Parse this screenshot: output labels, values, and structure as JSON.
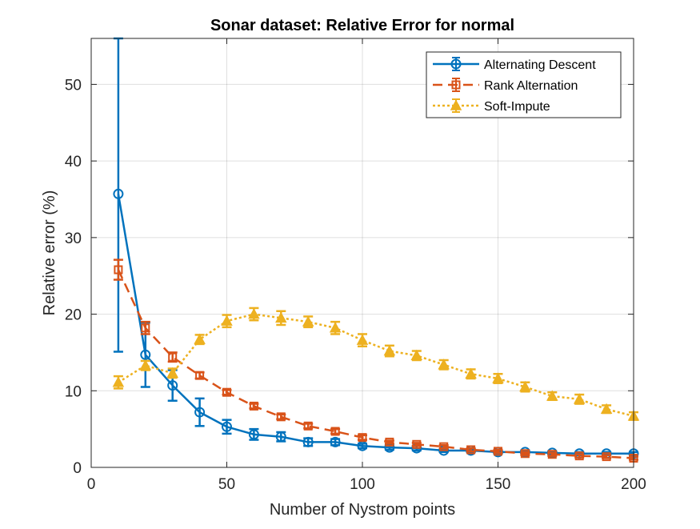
{
  "chart_data": {
    "type": "line",
    "title": "Sonar dataset: Relative Error for normal",
    "xlabel": "Number of Nystrom points",
    "ylabel": "Relative error (%)",
    "xlim": [
      0,
      200
    ],
    "ylim": [
      0,
      56
    ],
    "xticks": [
      0,
      50,
      100,
      150,
      200
    ],
    "yticks": [
      0,
      10,
      20,
      30,
      40,
      50
    ],
    "grid": true,
    "legend_position": "top-right",
    "x": [
      10,
      20,
      30,
      40,
      50,
      60,
      70,
      80,
      90,
      100,
      110,
      120,
      130,
      140,
      150,
      160,
      170,
      180,
      190,
      200
    ],
    "series": [
      {
        "name": "Alternating Descent",
        "color": "#0072BD",
        "line_style": "solid",
        "marker": "circle",
        "values": [
          35.7,
          14.7,
          10.7,
          7.2,
          5.3,
          4.3,
          4.0,
          3.3,
          3.3,
          2.8,
          2.6,
          2.5,
          2.2,
          2.2,
          2.0,
          2.0,
          1.9,
          1.8,
          1.8,
          1.8
        ],
        "errors": [
          20.6,
          4.2,
          2.0,
          1.8,
          0.9,
          0.7,
          0.6,
          0.5,
          0.4,
          0.3,
          0.3,
          0.3,
          0.2,
          0.2,
          0.2,
          0.2,
          0.2,
          0.2,
          0.2,
          0.2
        ]
      },
      {
        "name": "Rank Alternation",
        "color": "#D95319",
        "line_style": "dashed",
        "marker": "square",
        "values": [
          25.8,
          18.2,
          14.4,
          12.0,
          9.8,
          8.0,
          6.6,
          5.4,
          4.7,
          3.9,
          3.3,
          3.0,
          2.7,
          2.3,
          2.1,
          1.8,
          1.7,
          1.5,
          1.4,
          1.2
        ],
        "errors": [
          1.3,
          0.8,
          0.6,
          0.4,
          0.3,
          0.3,
          0.3,
          0.3,
          0.3,
          0.3,
          0.2,
          0.2,
          0.2,
          0.2,
          0.2,
          0.2,
          0.2,
          0.2,
          0.2,
          0.2
        ]
      },
      {
        "name": "Soft-Impute",
        "color": "#EDB120",
        "line_style": "dotted",
        "marker": "triangle",
        "values": [
          11.1,
          13.3,
          12.3,
          16.7,
          19.1,
          20.0,
          19.5,
          19.0,
          18.2,
          16.6,
          15.2,
          14.6,
          13.4,
          12.2,
          11.6,
          10.5,
          9.3,
          8.9,
          7.6,
          6.7
        ],
        "errors": [
          0.8,
          0.6,
          0.6,
          0.6,
          0.8,
          0.8,
          0.9,
          0.7,
          0.8,
          0.8,
          0.7,
          0.6,
          0.6,
          0.6,
          0.6,
          0.6,
          0.5,
          0.6,
          0.5,
          0.5
        ]
      }
    ]
  }
}
